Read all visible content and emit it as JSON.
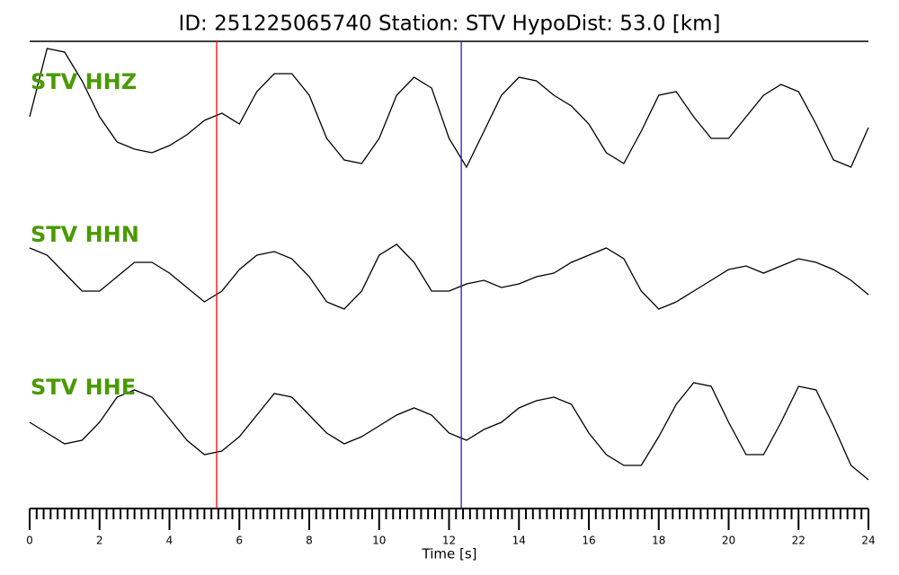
{
  "chart_data": {
    "type": "line",
    "title": "ID: 251225065740   Station: STV   HypoDist:    53.0 [km]",
    "xlabel": "Time [s]",
    "x": [
      0,
      0.5,
      1,
      1.5,
      2,
      2.5,
      3,
      3.5,
      4,
      4.5,
      5,
      5.5,
      6,
      6.5,
      7,
      7.5,
      8,
      8.5,
      9,
      9.5,
      10,
      10.5,
      11,
      11.5,
      12,
      12.5,
      13,
      13.5,
      14,
      14.5,
      15,
      15.5,
      16,
      16.5,
      17,
      17.5,
      18,
      18.5,
      19,
      19.5,
      20,
      20.5,
      21,
      21.5,
      22,
      22.5,
      23,
      23.5,
      24
    ],
    "series": [
      {
        "name": "STV HHZ",
        "color": "#000000",
        "values": [
          0,
          0.95,
          0.9,
          0.5,
          0,
          -0.35,
          -0.45,
          -0.5,
          -0.4,
          -0.25,
          -0.05,
          0.05,
          -0.1,
          0.35,
          0.6,
          0.6,
          0.3,
          -0.3,
          -0.6,
          -0.65,
          -0.3,
          0.3,
          0.55,
          0.4,
          -0.3,
          -0.7,
          -0.2,
          0.3,
          0.55,
          0.5,
          0.3,
          0.15,
          -0.1,
          -0.5,
          -0.65,
          -0.2,
          0.3,
          0.35,
          0,
          -0.3,
          -0.3,
          0,
          0.3,
          0.45,
          0.35,
          -0.1,
          -0.6,
          -0.7,
          -0.15
        ]
      },
      {
        "name": "STV HHN",
        "color": "#000000",
        "values": [
          0.3,
          0.2,
          -0.05,
          -0.3,
          -0.3,
          -0.1,
          0.1,
          0.1,
          -0.05,
          -0.25,
          -0.45,
          -0.3,
          0,
          0.2,
          0.25,
          0.15,
          -0.1,
          -0.45,
          -0.55,
          -0.3,
          0.2,
          0.35,
          0.1,
          -0.3,
          -0.3,
          -0.2,
          -0.15,
          -0.25,
          -0.2,
          -0.1,
          -0.05,
          0.1,
          0.2,
          0.3,
          0.15,
          -0.3,
          -0.55,
          -0.45,
          -0.3,
          -0.15,
          0,
          0.05,
          -0.05,
          0.05,
          0.15,
          0.1,
          0,
          -0.15,
          -0.35
        ]
      },
      {
        "name": "STV HHE",
        "color": "#000000",
        "values": [
          0,
          -0.15,
          -0.3,
          -0.25,
          0,
          0.35,
          0.45,
          0.35,
          0.05,
          -0.25,
          -0.45,
          -0.4,
          -0.2,
          0.1,
          0.4,
          0.35,
          0.1,
          -0.15,
          -0.3,
          -0.2,
          -0.05,
          0.1,
          0.2,
          0.1,
          -0.15,
          -0.25,
          -0.1,
          0,
          0.2,
          0.3,
          0.35,
          0.25,
          -0.15,
          -0.45,
          -0.6,
          -0.6,
          -0.2,
          0.25,
          0.55,
          0.5,
          0,
          -0.45,
          -0.45,
          0,
          0.5,
          0.45,
          -0.05,
          -0.6,
          -0.8
        ]
      }
    ],
    "label_color": "#4a9a00",
    "ylim": [
      -1,
      1
    ],
    "xlim": [
      0,
      24
    ],
    "xticks": [
      0,
      2,
      4,
      6,
      8,
      10,
      12,
      14,
      16,
      18,
      20,
      22,
      24
    ],
    "xminorticks": [
      0.2,
      0.4,
      0.6,
      0.8,
      1,
      1.2,
      1.4,
      1.6,
      1.8,
      2.2,
      2.4,
      2.6,
      2.8,
      3,
      3.2,
      3.4,
      3.6,
      3.8,
      4.2,
      4.4,
      4.6,
      4.8,
      5,
      5.2,
      5.4,
      5.6,
      5.8,
      6.2,
      6.4,
      6.6,
      6.8,
      7,
      7.2,
      7.4,
      7.6,
      7.8,
      8.2,
      8.4,
      8.6,
      8.8,
      9,
      9.2,
      9.4,
      9.6,
      9.8,
      10.2,
      10.4,
      10.6,
      10.8,
      11,
      11.2,
      11.4,
      11.6,
      11.8,
      12.2,
      12.4,
      12.6,
      12.8,
      13,
      13.2,
      13.4,
      13.6,
      13.8,
      14.2,
      14.4,
      14.6,
      14.8,
      15,
      15.2,
      15.4,
      15.6,
      15.8,
      16.2,
      16.4,
      16.6,
      16.8,
      17,
      17.2,
      17.4,
      17.6,
      17.8,
      18.2,
      18.4,
      18.6,
      18.8,
      19,
      19.2,
      19.4,
      19.6,
      19.8,
      20.2,
      20.4,
      20.6,
      20.8,
      21,
      21.2,
      21.4,
      21.6,
      21.8,
      22.2,
      22.4,
      22.6,
      22.8,
      23,
      23.2,
      23.4,
      23.6,
      23.8
    ],
    "vlines": [
      {
        "x": 5.35,
        "color": "#ff0000"
      },
      {
        "x": 12.35,
        "color": "#2020c0"
      }
    ]
  }
}
